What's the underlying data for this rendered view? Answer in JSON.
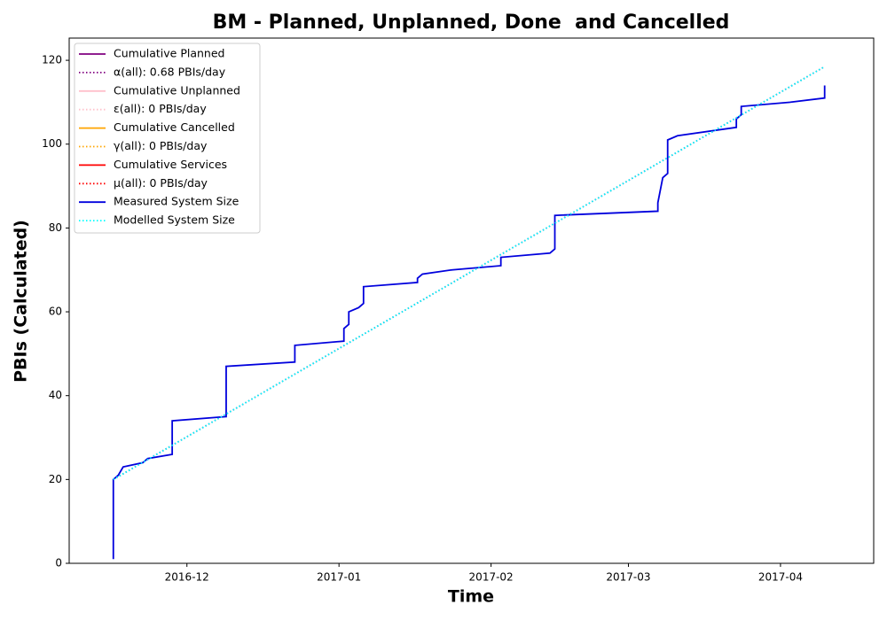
{
  "chart_data": {
    "type": "line",
    "title": "BM - Planned, Unplanned, Done  and Cancelled",
    "xlabel": "Time",
    "ylabel": "PBIs (Calculated)",
    "xlim": [
      "2016-11-07",
      "2017-04-20"
    ],
    "xticks": [
      {
        "value": "2016-12-01",
        "label": "2016-12"
      },
      {
        "value": "2017-01-01",
        "label": "2017-01"
      },
      {
        "value": "2017-02-01",
        "label": "2017-02"
      },
      {
        "value": "2017-03-01",
        "label": "2017-03"
      },
      {
        "value": "2017-04-01",
        "label": "2017-04"
      }
    ],
    "ylim": [
      0,
      125.3
    ],
    "yticks": [
      0,
      20,
      40,
      60,
      80,
      100,
      120
    ],
    "grid": false,
    "legend": "upper left",
    "series": [
      {
        "name": "Cumulative Planned",
        "color": "purple",
        "style": "solid",
        "x": [],
        "values": []
      },
      {
        "name": "α(all): 0.68 PBIs/day",
        "color": "purple",
        "style": "dotted",
        "x": [
          "2016-11-16",
          "2017-04-10"
        ],
        "values": [
          20,
          118.5
        ]
      },
      {
        "name": "Cumulative Unplanned",
        "color": "pink",
        "style": "solid",
        "x": [],
        "values": []
      },
      {
        "name": "ε(all): 0 PBIs/day",
        "color": "pink",
        "style": "dotted",
        "x": [],
        "values": []
      },
      {
        "name": "Cumulative Cancelled",
        "color": "orange",
        "style": "solid",
        "x": [],
        "values": []
      },
      {
        "name": "γ(all): 0 PBIs/day",
        "color": "orange",
        "style": "dotted",
        "x": [],
        "values": []
      },
      {
        "name": "Cumulative Services",
        "color": "red",
        "style": "solid",
        "x": [],
        "values": []
      },
      {
        "name": "μ(all): 0 PBIs/day",
        "color": "red",
        "style": "dotted",
        "x": [],
        "values": []
      },
      {
        "name": "Measured System Size",
        "color": "#0000dd",
        "style": "solid",
        "x": [
          "2016-11-16",
          "2016-11-16",
          "2016-11-17",
          "2016-11-18",
          "2016-11-22",
          "2016-11-23",
          "2016-11-28",
          "2016-11-28",
          "2016-12-09",
          "2016-12-09",
          "2016-12-23",
          "2016-12-23",
          "2017-01-02",
          "2017-01-02",
          "2017-01-03",
          "2017-01-03",
          "2017-01-05",
          "2017-01-06",
          "2017-01-06",
          "2017-01-17",
          "2017-01-17",
          "2017-01-18",
          "2017-01-24",
          "2017-02-03",
          "2017-02-03",
          "2017-02-13",
          "2017-02-14",
          "2017-02-14",
          "2017-02-14",
          "2017-03-07",
          "2017-03-07",
          "2017-03-08",
          "2017-03-09",
          "2017-03-09",
          "2017-03-11",
          "2017-03-23",
          "2017-03-23",
          "2017-03-24",
          "2017-03-24",
          "2017-04-03",
          "2017-04-10",
          "2017-04-10"
        ],
        "values": [
          1,
          20,
          21,
          23,
          24,
          25,
          26,
          34,
          35,
          47,
          48,
          52,
          53,
          56,
          57,
          60,
          61,
          62,
          66,
          67,
          68,
          69,
          70,
          71,
          73,
          74,
          75,
          80,
          83,
          84,
          86,
          92,
          93,
          101,
          102,
          104,
          106,
          107,
          109,
          110,
          111,
          114
        ]
      },
      {
        "name": "Modelled System Size",
        "color": "cyan",
        "style": "dotted",
        "x": [
          "2016-11-16",
          "2017-04-10"
        ],
        "values": [
          20,
          118.5
        ]
      }
    ]
  }
}
